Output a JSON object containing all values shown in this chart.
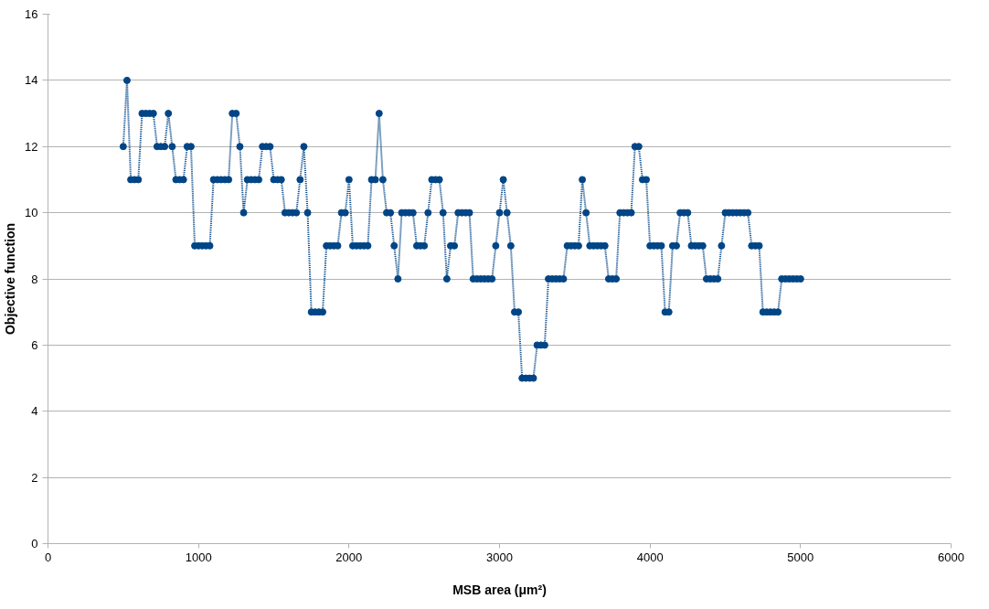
{
  "chart_data": {
    "type": "line",
    "xlabel": "MSB area (μm²)",
    "ylabel": "Objective function",
    "x": [
      500,
      525,
      550,
      575,
      600,
      625,
      650,
      675,
      700,
      725,
      750,
      775,
      800,
      825,
      850,
      875,
      900,
      925,
      950,
      975,
      1000,
      1025,
      1050,
      1075,
      1100,
      1125,
      1150,
      1175,
      1200,
      1225,
      1250,
      1275,
      1300,
      1325,
      1350,
      1375,
      1400,
      1425,
      1450,
      1475,
      1500,
      1525,
      1550,
      1575,
      1600,
      1625,
      1650,
      1675,
      1700,
      1725,
      1750,
      1775,
      1800,
      1825,
      1850,
      1875,
      1900,
      1925,
      1950,
      1975,
      2000,
      2025,
      2050,
      2075,
      2100,
      2125,
      2150,
      2175,
      2200,
      2225,
      2250,
      2275,
      2300,
      2325,
      2350,
      2375,
      2400,
      2425,
      2450,
      2475,
      2500,
      2525,
      2550,
      2575,
      2600,
      2625,
      2650,
      2675,
      2700,
      2725,
      2750,
      2775,
      2800,
      2825,
      2850,
      2875,
      2900,
      2925,
      2950,
      2975,
      3000,
      3025,
      3050,
      3075,
      3100,
      3125,
      3150,
      3175,
      3200,
      3225,
      3250,
      3275,
      3300,
      3325,
      3350,
      3375,
      3400,
      3425,
      3450,
      3475,
      3500,
      3525,
      3550,
      3575,
      3600,
      3625,
      3650,
      3675,
      3700,
      3725,
      3750,
      3775,
      3800,
      3825,
      3850,
      3875,
      3900,
      3925,
      3950,
      3975,
      4000,
      4025,
      4050,
      4075,
      4100,
      4125,
      4150,
      4175,
      4200,
      4225,
      4250,
      4275,
      4300,
      4325,
      4350,
      4375,
      4400,
      4425,
      4450,
      4475,
      4500,
      4525,
      4550,
      4575,
      4600,
      4625,
      4650,
      4675,
      4700,
      4725,
      4750,
      4775,
      4800,
      4825,
      4850,
      4875,
      4900,
      4925,
      4950,
      4975,
      5000
    ],
    "series": [
      {
        "color": "#004586",
        "values": [
          12,
          14,
          11,
          11,
          11,
          13,
          13,
          13,
          13,
          12,
          12,
          12,
          13,
          12,
          11,
          11,
          11,
          12,
          12,
          9,
          9,
          9,
          9,
          9,
          11,
          11,
          11,
          11,
          11,
          13,
          13,
          12,
          10,
          11,
          11,
          11,
          11,
          12,
          12,
          12,
          11,
          11,
          11,
          10,
          10,
          10,
          10,
          11,
          12,
          10,
          7,
          7,
          7,
          7,
          9,
          9,
          9,
          9,
          10,
          10,
          11,
          9,
          9,
          9,
          9,
          9,
          11,
          11,
          13,
          11,
          10,
          10,
          9,
          8,
          10,
          10,
          10,
          10,
          9,
          9,
          9,
          10,
          11,
          11,
          11,
          10,
          8,
          9,
          9,
          10,
          10,
          10,
          10,
          8,
          8,
          8,
          8,
          8,
          8,
          9,
          10,
          11,
          10,
          9,
          7,
          7,
          5,
          5,
          5,
          5,
          6,
          6,
          6,
          8,
          8,
          8,
          8,
          8,
          9,
          9,
          9,
          9,
          11,
          10,
          9,
          9,
          9,
          9,
          9,
          8,
          8,
          8,
          10,
          10,
          10,
          10,
          12,
          12,
          11,
          11,
          9,
          9,
          9,
          9,
          7,
          7,
          9,
          9,
          10,
          10,
          10,
          9,
          9,
          9,
          9,
          8,
          8,
          8,
          8,
          9,
          10,
          10,
          10,
          10,
          10,
          10,
          10,
          9,
          9,
          9,
          7,
          7,
          7,
          7,
          7,
          8,
          8,
          8,
          8,
          8,
          8
        ]
      }
    ],
    "xlim": [
      0,
      6000
    ],
    "xticks": [
      0,
      1000,
      2000,
      3000,
      4000,
      5000,
      6000
    ],
    "ylim": [
      0,
      16
    ],
    "yticks": [
      0,
      2,
      4,
      6,
      8,
      10,
      12,
      14,
      16
    ],
    "grid": "y",
    "marker": "circle",
    "line_style": "dotted"
  }
}
